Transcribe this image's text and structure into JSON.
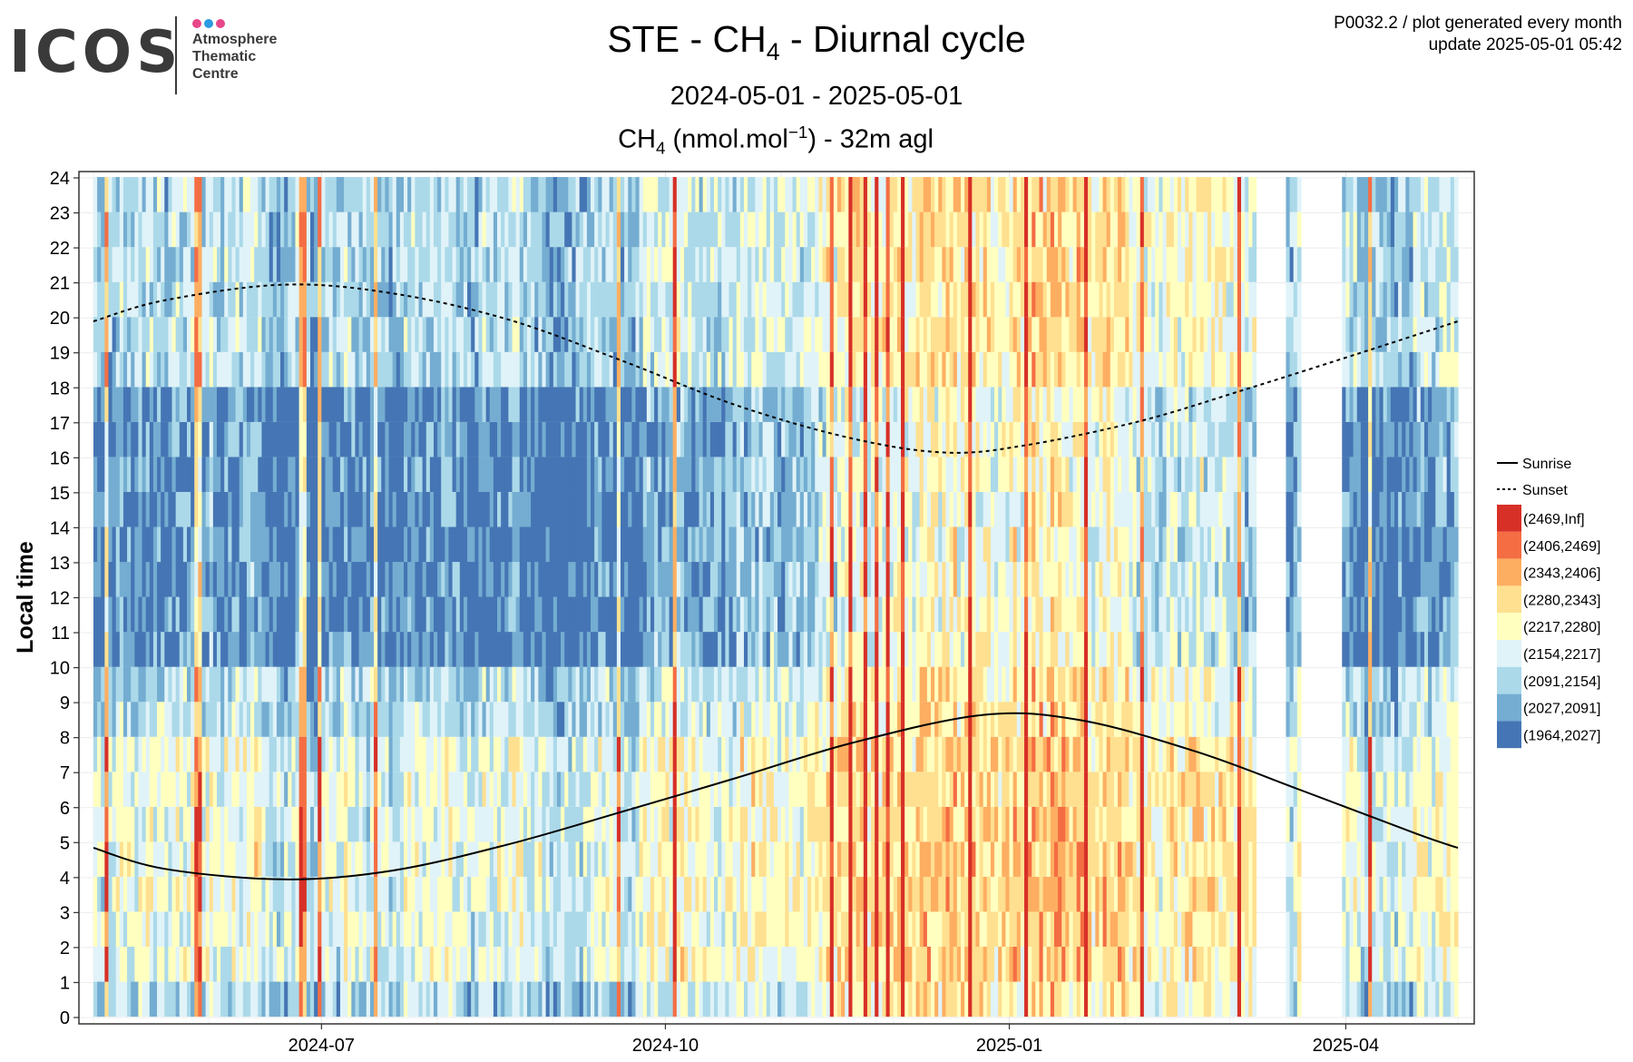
{
  "logo": {
    "word": "ICOS",
    "lines": [
      "Atmosphere",
      "Thematic",
      "Centre"
    ],
    "dot_colors": [
      "#e8468a",
      "#2d9be0",
      "#e8468a"
    ]
  },
  "header": {
    "title_pre": "STE - CH",
    "title_sub": "4",
    "title_post": " - Diurnal cycle",
    "period": "2024-05-01 - 2025-05-01",
    "subtitle_pre": "CH",
    "subtitle_sub": "4",
    "subtitle_mid": " (nmol.mol",
    "subtitle_sup": "−1",
    "subtitle_post": ") - 32m agl",
    "meta_line1": "P0032.2 / plot generated every month",
    "meta_line2": "update  2025-05-01 05:42"
  },
  "chart_data": {
    "type": "heatmap",
    "ylabel": "Local time",
    "x_range": [
      "2024-05-01",
      "2025-05-01"
    ],
    "x_ticks": [
      "2024-07",
      "2024-10",
      "2025-01",
      "2025-04"
    ],
    "y_ticks": [
      "0",
      "1",
      "2",
      "3",
      "4",
      "5",
      "6",
      "7",
      "8",
      "9",
      "10",
      "11",
      "12",
      "13",
      "14",
      "15",
      "16",
      "17",
      "18",
      "19",
      "20",
      "21",
      "22",
      "23",
      "24"
    ],
    "ylim": [
      0,
      24
    ],
    "grid": true,
    "legend_position": "right",
    "lines": [
      {
        "name": "Sunrise",
        "style": "solid",
        "points": [
          [
            "2024-05-01",
            4.85
          ],
          [
            "2024-05-20",
            4.25
          ],
          [
            "2024-06-21",
            3.95
          ],
          [
            "2024-07-20",
            4.2
          ],
          [
            "2024-08-20",
            4.95
          ],
          [
            "2024-09-20",
            5.9
          ],
          [
            "2024-10-20",
            6.85
          ],
          [
            "2024-11-20",
            7.85
          ],
          [
            "2024-12-25",
            8.65
          ],
          [
            "2025-01-20",
            8.5
          ],
          [
            "2025-02-20",
            7.6
          ],
          [
            "2025-03-20",
            6.5
          ],
          [
            "2025-04-20",
            5.25
          ],
          [
            "2025-05-01",
            4.85
          ]
        ]
      },
      {
        "name": "Sunset",
        "style": "dashed",
        "points": [
          [
            "2024-05-01",
            19.9
          ],
          [
            "2024-05-20",
            20.5
          ],
          [
            "2024-06-21",
            20.95
          ],
          [
            "2024-07-20",
            20.7
          ],
          [
            "2024-08-20",
            19.95
          ],
          [
            "2024-09-20",
            18.75
          ],
          [
            "2024-10-20",
            17.5
          ],
          [
            "2024-11-20",
            16.55
          ],
          [
            "2024-12-15",
            16.15
          ],
          [
            "2025-01-05",
            16.35
          ],
          [
            "2025-02-05",
            17.05
          ],
          [
            "2025-03-05",
            17.95
          ],
          [
            "2025-04-05",
            19.0
          ],
          [
            "2025-05-01",
            19.9
          ]
        ]
      }
    ],
    "color_scale": [
      {
        "label": "(2469,Inf]",
        "color": "#d73027"
      },
      {
        "label": "(2406,2469]",
        "color": "#f46d43"
      },
      {
        "label": "(2343,2406]",
        "color": "#fdae61"
      },
      {
        "label": "(2280,2343]",
        "color": "#fee090"
      },
      {
        "label": "(2217,2280]",
        "color": "#ffffbf"
      },
      {
        "label": "(2154,2217]",
        "color": "#e0f3f8"
      },
      {
        "label": "(2091,2154]",
        "color": "#abd9e9"
      },
      {
        "label": "(2027,2091]",
        "color": "#74add1"
      },
      {
        "label": "(1964,2027]",
        "color": "#4575b4"
      }
    ],
    "data_gaps": [
      [
        "2025-03-08",
        "2025-03-16"
      ],
      [
        "2025-03-20",
        "2025-03-31"
      ]
    ]
  }
}
